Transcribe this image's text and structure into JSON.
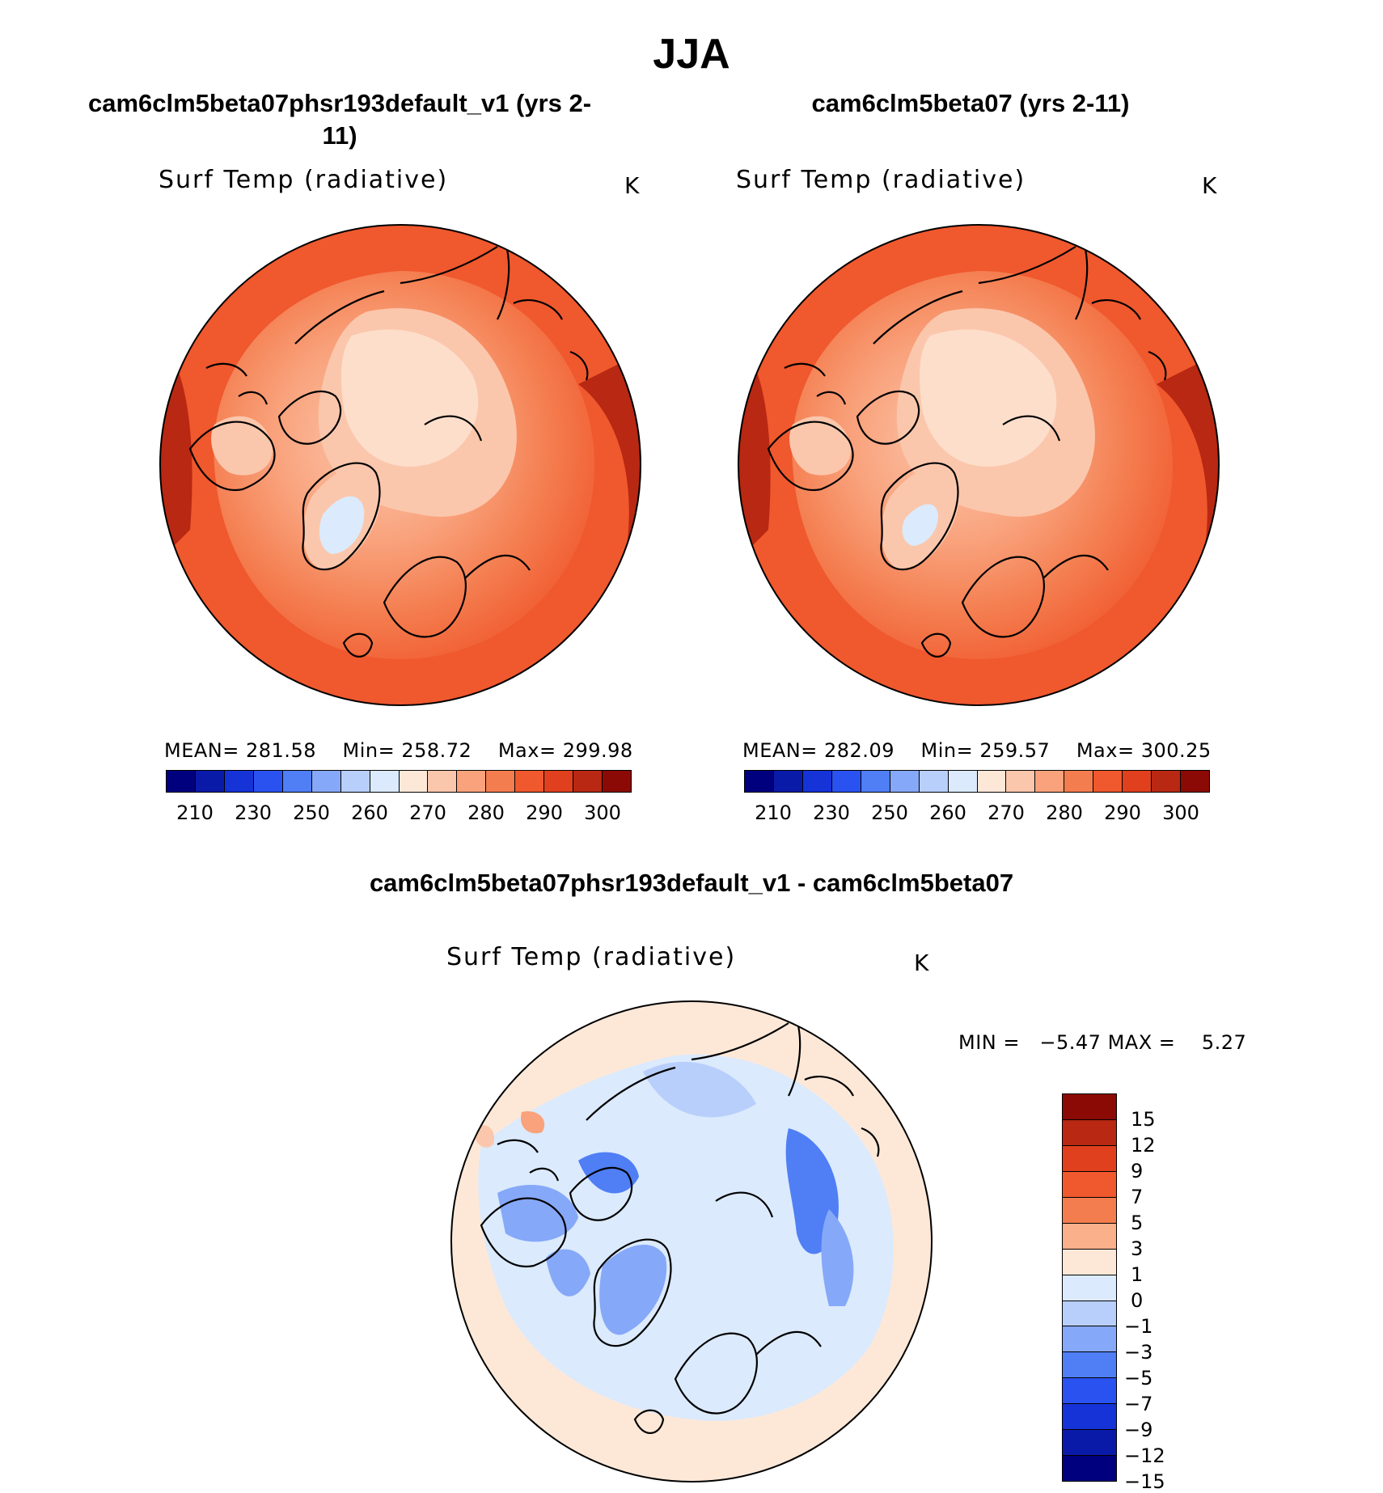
{
  "season_title": "JJA",
  "panels": [
    {
      "case_title": "cam6clm5beta07phsr193default_v1 (yrs 2-11)",
      "variable": "Surf Temp (radiative)",
      "units": "K",
      "mean_label": "MEAN=",
      "mean_value": "281.58",
      "min_label": "Min=",
      "min_value": "258.72",
      "max_label": "Max=",
      "max_value": "299.98"
    },
    {
      "case_title": "cam6clm5beta07 (yrs 2-11)",
      "variable": "Surf Temp (radiative)",
      "units": "K",
      "mean_label": "MEAN=",
      "mean_value": "282.09",
      "min_label": "Min=",
      "min_value": "259.57",
      "max_label": "Max=",
      "max_value": "300.25"
    }
  ],
  "abs_colorbar": {
    "colors": [
      "#00007f",
      "#0a1aa8",
      "#1533d6",
      "#2a52f0",
      "#4f7ef5",
      "#86a8f8",
      "#b8cffb",
      "#dbeafd",
      "#fde8d8",
      "#fbc7ac",
      "#f9a27c",
      "#f47d4f",
      "#f0582e",
      "#e0401e",
      "#b82812",
      "#8b0a05"
    ],
    "tick_labels": [
      "210",
      "230",
      "250",
      "260",
      "270",
      "280",
      "290",
      "300"
    ]
  },
  "diff_panel": {
    "title": "cam6clm5beta07phsr193default_v1 - cam6clm5beta07",
    "variable": "Surf Temp (radiative)",
    "units": "K",
    "min_label": "MIN =",
    "min_value": "−5.47",
    "max_label": "MAX =",
    "max_value": "5.27"
  },
  "diff_colorbar": {
    "colors_top_to_bottom": [
      "#8b0a05",
      "#b82812",
      "#e0401e",
      "#f0582e",
      "#f47d4f",
      "#fbb08c",
      "#fde8d8",
      "#dbeafd",
      "#b8cffb",
      "#86a8f8",
      "#4f7ef5",
      "#2a52f0",
      "#1533d6",
      "#0a1aa8",
      "#00007f"
    ],
    "tick_labels": [
      "15",
      "12",
      "9",
      "7",
      "5",
      "3",
      "1",
      "0",
      "−1",
      "−3",
      "−5",
      "−7",
      "−9",
      "−12",
      "−15"
    ]
  }
}
